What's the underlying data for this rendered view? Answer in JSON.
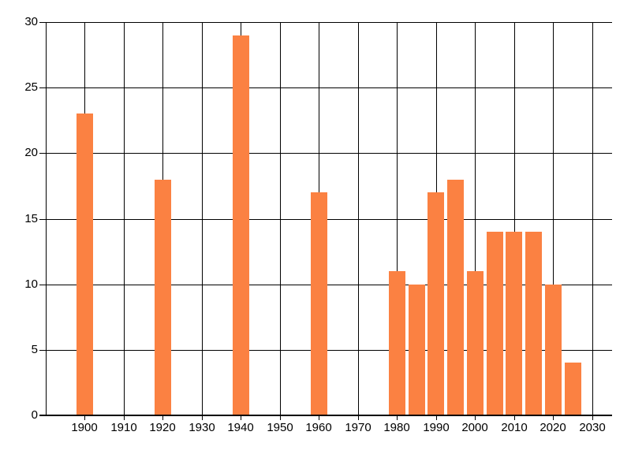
{
  "chart_data": {
    "type": "bar",
    "title": "",
    "xlabel": "",
    "ylabel": "",
    "x": [
      1900,
      1920,
      1940,
      1960,
      1980,
      1985,
      1990,
      1995,
      2000,
      2005,
      2010,
      2015,
      2020,
      2025
    ],
    "values": [
      23,
      18,
      29,
      17,
      11,
      10,
      17,
      18,
      11,
      14,
      14,
      14,
      10,
      4
    ],
    "bar_color": "#FB8142",
    "bar_width_years": 4.25,
    "xlim": [
      1890,
      2035.1
    ],
    "ylim": [
      0,
      30
    ],
    "x_tick_years": [
      1900,
      1910,
      1920,
      1930,
      1940,
      1950,
      1960,
      1970,
      1980,
      1990,
      2000,
      2010,
      2020,
      2030
    ],
    "x_tick_labels": [
      "1900",
      "1910",
      "1920",
      "1930",
      "1940",
      "1950",
      "1960",
      "1970",
      "1980",
      "1990",
      "2000",
      "2010",
      "2020",
      "2030"
    ],
    "y_tick_values": [
      0,
      5,
      10,
      15,
      20,
      25,
      30
    ],
    "y_tick_labels": [
      "0",
      "5",
      "10",
      "15",
      "20",
      "25",
      "30"
    ],
    "grid": true,
    "legend": false,
    "grid_color": "#000000",
    "axis_color": "#000000",
    "text_color": "#000000",
    "background": "#FFFFFF"
  }
}
